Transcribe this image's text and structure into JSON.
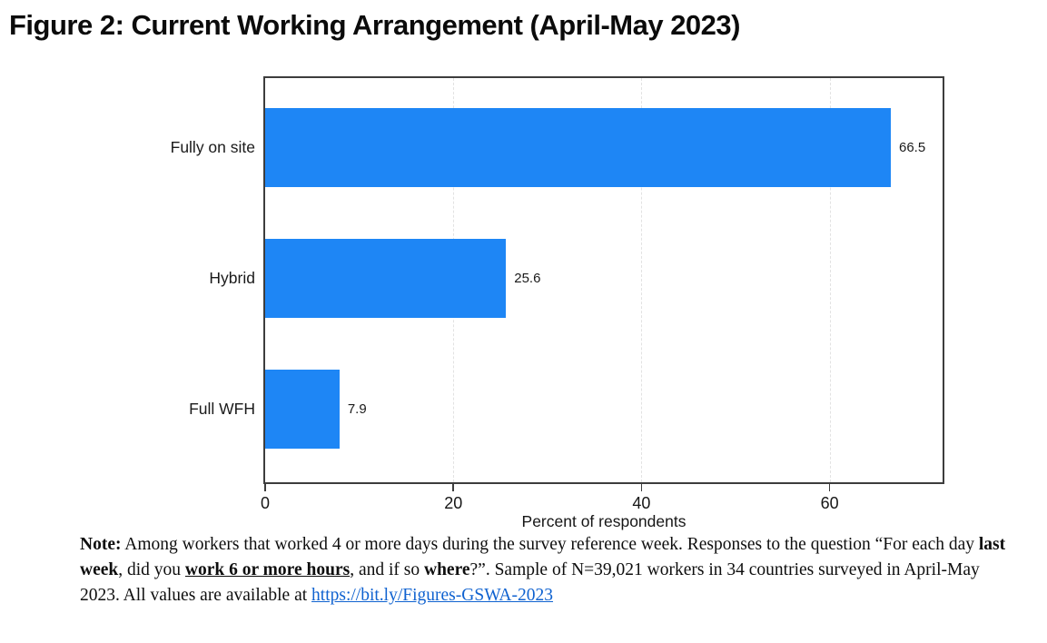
{
  "title": "Figure 2: Current Working Arrangement (April-May 2023)",
  "chart_data": {
    "type": "bar",
    "orientation": "horizontal",
    "title": "Figure 2: Current Working Arrangement (April-May 2023)",
    "categories": [
      "Fully on site",
      "Hybrid",
      "Full WFH"
    ],
    "values": [
      66.5,
      25.6,
      7.9
    ],
    "value_labels": [
      "66.5",
      "25.6",
      "7.9"
    ],
    "xlabel": "Percent of respondents",
    "ylabel": "",
    "xlim": [
      0,
      72
    ],
    "xticks": [
      0,
      20,
      40,
      60
    ],
    "xtick_labels": [
      "0",
      "20",
      "40",
      "60"
    ],
    "grid": "vertical-dashed",
    "legend": "none",
    "bar_color": "#1e86f5",
    "axis_color": "#3d3d3d",
    "grid_color": "#e2e2e2"
  },
  "note": {
    "segments": [
      {
        "text": "Note:",
        "bold": true
      },
      {
        "text": " Among workers that worked 4 or more days during the survey reference week. Responses to the question “For each day "
      },
      {
        "text": "last week",
        "bold": true
      },
      {
        "text": ", did you "
      },
      {
        "text": "work 6 or more hours",
        "bold": true,
        "underline": true
      },
      {
        "text": ", and if so "
      },
      {
        "text": "where",
        "bold": true
      },
      {
        "text": "?”. Sample of N=39,021 workers in 34 countries surveyed in April-May 2023. All values are available at "
      },
      {
        "text": "https://bit.ly/Figures-GSWA-2023",
        "link": true
      }
    ]
  }
}
